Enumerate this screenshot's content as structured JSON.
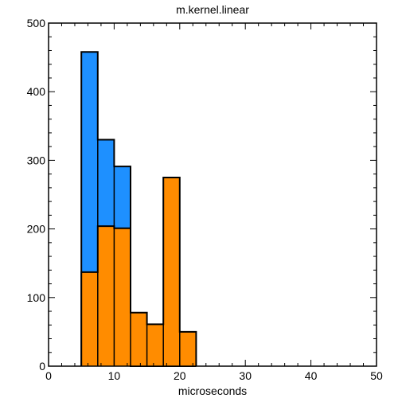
{
  "chart_data": {
    "type": "bar",
    "title": "m.kernel.linear",
    "xlabel": "microseconds",
    "ylabel": "",
    "xlim": [
      0,
      50
    ],
    "ylim": [
      0,
      500
    ],
    "x_major_ticks": [
      0,
      10,
      20,
      30,
      40,
      50
    ],
    "y_major_ticks": [
      0,
      100,
      200,
      300,
      400,
      500
    ],
    "x_tick_labels": [
      "0",
      "10",
      "20",
      "30",
      "40",
      "50"
    ],
    "y_tick_labels": [
      "0",
      "100",
      "200",
      "300",
      "400",
      "500"
    ],
    "bin_edges": [
      5,
      7.5,
      10,
      12.5,
      15,
      17.5,
      20,
      22.5
    ],
    "series": [
      {
        "color": "#1e90ff",
        "values": [
          458,
          330,
          291,
          0,
          0,
          0,
          0
        ]
      },
      {
        "color": "#ff8c00",
        "values": [
          137,
          204,
          201,
          78,
          61,
          275,
          50
        ]
      }
    ],
    "grid": false,
    "legend": "none"
  }
}
